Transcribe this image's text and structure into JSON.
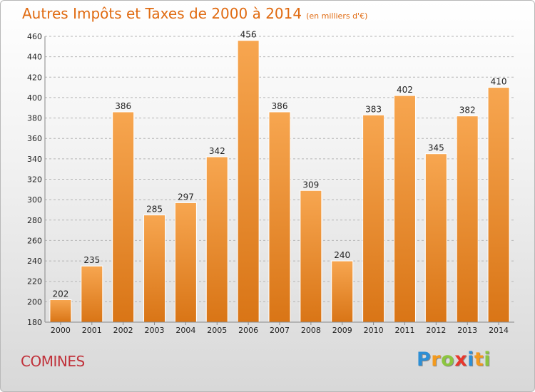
{
  "title": "Autres Impôts et Taxes de 2000 à 2014",
  "subtitle": "(en milliers d'€)",
  "city": "COMINES",
  "logo": {
    "letters": [
      "P",
      "r",
      "o",
      "x",
      "i",
      "t",
      "i"
    ],
    "colors": [
      "#2d8fd5",
      "#f39a1e",
      "#8cc63f",
      "#e8372c",
      "#2d8fd5",
      "#f39a1e",
      "#8cc63f"
    ]
  },
  "colors": {
    "bar_top": "#f7a650",
    "bar_bottom": "#d97516",
    "grid": "#b5b5b5",
    "axis_text": "#222222"
  },
  "chart_data": {
    "type": "bar",
    "categories": [
      "2000",
      "2001",
      "2002",
      "2003",
      "2004",
      "2005",
      "2006",
      "2007",
      "2008",
      "2009",
      "2010",
      "2011",
      "2012",
      "2013",
      "2014"
    ],
    "values": [
      202,
      235,
      386,
      285,
      297,
      342,
      456,
      386,
      309,
      240,
      383,
      402,
      345,
      382,
      410
    ],
    "ylim": [
      180,
      460
    ],
    "yticks": [
      180,
      200,
      220,
      240,
      260,
      280,
      300,
      320,
      340,
      360,
      380,
      400,
      420,
      440,
      460
    ],
    "grid": true,
    "data_labels": true
  }
}
